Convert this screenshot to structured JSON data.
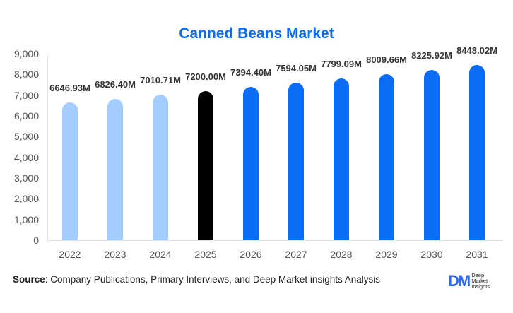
{
  "title": "Canned Beans Market",
  "y_ticks": [
    "9,000",
    "8,000",
    "7,000",
    "6,000",
    "5,000",
    "4,000",
    "3,000",
    "2,000",
    "1,000",
    "0"
  ],
  "source": {
    "label": "Source",
    "text": ": Company Publications, Primary Interviews, and Deep Market insights Analysis"
  },
  "logo": {
    "mark": "DM",
    "line1": "Deep",
    "line2": "Market",
    "line3": "Insights"
  },
  "colors": {
    "historical": "#a3cdfd",
    "current": "#000000",
    "forecast": "#0a6cf5",
    "title": "#0a6cf5"
  },
  "chart_data": {
    "type": "bar",
    "title": "Canned Beans Market",
    "xlabel": "",
    "ylabel": "",
    "ylim": [
      0,
      9000
    ],
    "grid": false,
    "legend": null,
    "categories": [
      "2022",
      "2023",
      "2024",
      "2025",
      "2026",
      "2027",
      "2028",
      "2029",
      "2030",
      "2031"
    ],
    "values": [
      6646.93,
      6826.4,
      7010.71,
      7200.0,
      7394.4,
      7594.05,
      7799.09,
      8009.66,
      8225.92,
      8448.02
    ],
    "labels": [
      "6646.93M",
      "6826.40M",
      "7010.71M",
      "7200.00M",
      "7394.40M",
      "7594.05M",
      "7799.09M",
      "8009.66M",
      "8225.92M",
      "8448.02M"
    ],
    "bar_colors": [
      "#a3cdfd",
      "#a3cdfd",
      "#a3cdfd",
      "#000000",
      "#0a6cf5",
      "#0a6cf5",
      "#0a6cf5",
      "#0a6cf5",
      "#0a6cf5",
      "#0a6cf5"
    ]
  }
}
